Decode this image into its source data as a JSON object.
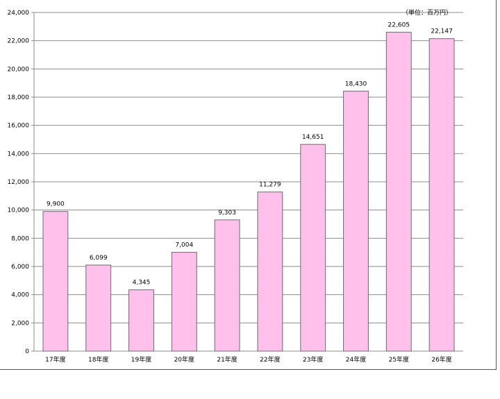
{
  "chart_data": {
    "type": "bar",
    "title": "",
    "xlabel": "",
    "ylabel": "",
    "unit_label": "（単位：百万円）",
    "categories": [
      "17年度",
      "18年度",
      "19年度",
      "20年度",
      "21年度",
      "22年度",
      "23年度",
      "24年度",
      "25年度",
      "26年度"
    ],
    "values": [
      9900,
      6099,
      4345,
      7004,
      9303,
      11279,
      14651,
      18430,
      22605,
      22147
    ],
    "value_labels": [
      "9,900",
      "6,099",
      "4,345",
      "7,004",
      "9,303",
      "11,279",
      "14,651",
      "18,430",
      "22,605",
      "22,147"
    ],
    "ylim": [
      0,
      24000
    ],
    "yticks": [
      0,
      2000,
      4000,
      6000,
      8000,
      10000,
      12000,
      14000,
      16000,
      18000,
      20000,
      22000,
      24000
    ],
    "ytick_labels": [
      "0",
      "2,000",
      "4,000",
      "6,000",
      "8,000",
      "10,000",
      "12,000",
      "14,000",
      "16,000",
      "18,000",
      "20,000",
      "22,000",
      "24,000"
    ],
    "grid": true,
    "bar_color": "#ffc0ec",
    "bar_edge_color": "#6b6b6b",
    "grid_color": "#8c8c8c"
  }
}
